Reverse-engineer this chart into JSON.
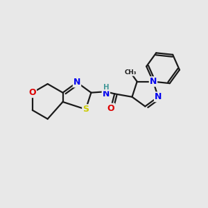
{
  "bg_color": "#e8e8e8",
  "bond_color": "#1a1a1a",
  "bond_lw": 1.6,
  "dbo": 0.12,
  "atom_colors": {
    "N": "#0000ee",
    "S": "#cccc00",
    "O": "#dd0000",
    "H": "#449999",
    "C": "#1a1a1a"
  },
  "fs": 9.0,
  "figsize": [
    3.0,
    3.0
  ],
  "dpi": 100
}
